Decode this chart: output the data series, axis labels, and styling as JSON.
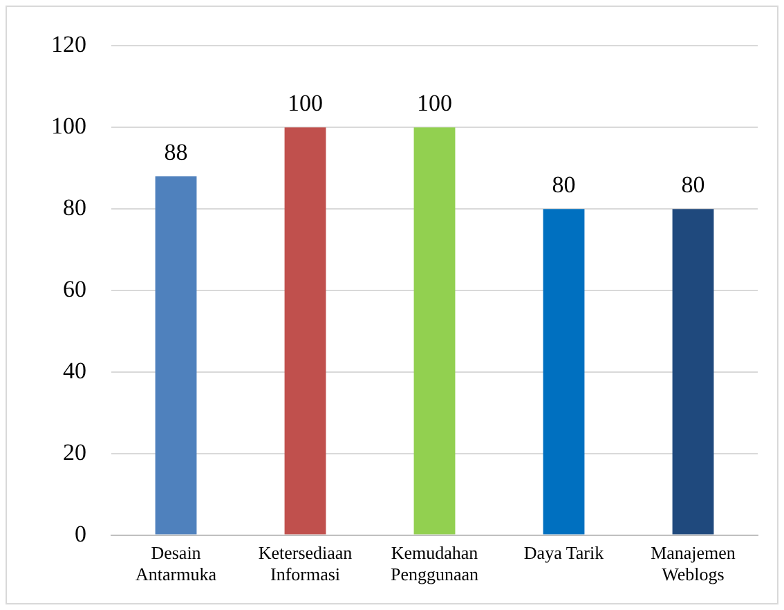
{
  "chart_data": {
    "type": "bar",
    "categories": [
      "Desain Antarmuka",
      "Ketersediaan Informasi",
      "Kemudahan Penggunaan",
      "Daya Tarik",
      "Manajemen Weblogs"
    ],
    "values": [
      88,
      100,
      100,
      80,
      80
    ],
    "colors": [
      "#4f81bd",
      "#c0504d",
      "#92d050",
      "#0070c0",
      "#1f497d"
    ],
    "ylim": [
      0,
      120
    ],
    "yticks": [
      0,
      20,
      40,
      60,
      80,
      100,
      120
    ],
    "grid": "y",
    "data_labels": true,
    "legend": false
  }
}
